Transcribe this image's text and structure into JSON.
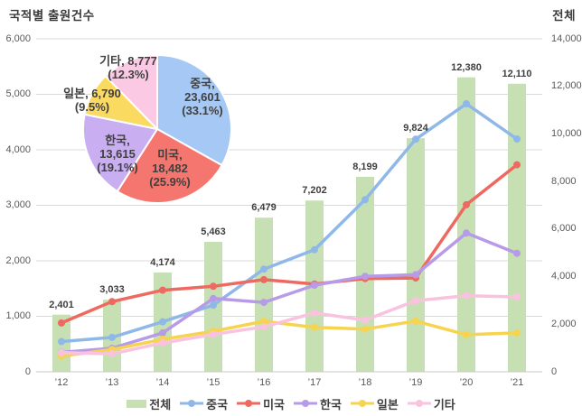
{
  "page": {
    "title": "국적별 출원건수",
    "right_axis_title": "전체"
  },
  "colors": {
    "grid": "#d9d9d9",
    "axis_line": "#c8c8c8",
    "tick_text": "#595959",
    "label_text": "#3f3f3f",
    "pie_border": "#ffffff"
  },
  "legend": {
    "items": [
      {
        "label": "전체",
        "marker": "bar",
        "color": "#c6e0b4"
      },
      {
        "label": "중국",
        "marker": "line",
        "color": "#8fb8e8"
      },
      {
        "label": "미국",
        "marker": "line",
        "color": "#ee6a60"
      },
      {
        "label": "한국",
        "marker": "line",
        "color": "#b89be8"
      },
      {
        "label": "일본",
        "marker": "line",
        "color": "#f7d44f"
      },
      {
        "label": "기타",
        "marker": "line",
        "color": "#f9c2df"
      }
    ]
  },
  "chart_data": [
    {
      "type": "bar",
      "name": "전체",
      "categories": [
        "’12",
        "’13",
        "’14",
        "’15",
        "’16",
        "’17",
        "’18",
        "’19",
        "’20",
        "’21"
      ],
      "values": [
        2401,
        3033,
        4174,
        5463,
        6479,
        7202,
        8199,
        9824,
        12380,
        12110
      ],
      "axis": "right",
      "ylabel": "전체",
      "ylim": [
        0,
        14000
      ],
      "yticks": [
        0,
        2000,
        4000,
        6000,
        8000,
        10000,
        12000,
        14000
      ],
      "color": "#c6e0b4",
      "data_labels": true,
      "grid": false
    },
    {
      "type": "line",
      "categories": [
        "’12",
        "’13",
        "’14",
        "’15",
        "’16",
        "’17",
        "’18",
        "’19",
        "’20",
        "’21"
      ],
      "axis": "left",
      "ylim": [
        0,
        6000
      ],
      "yticks": [
        0,
        1000,
        2000,
        3000,
        4000,
        5000,
        6000
      ],
      "grid": true,
      "legend_position": "bottom",
      "series": [
        {
          "name": "중국",
          "color": "#8fb8e8",
          "values": [
            545,
            620,
            900,
            1200,
            1850,
            2200,
            3100,
            4190,
            4830,
            4195
          ]
        },
        {
          "name": "미국",
          "color": "#ee6a60",
          "values": [
            880,
            1265,
            1470,
            1540,
            1660,
            1580,
            1680,
            1690,
            3010,
            3730
          ]
        },
        {
          "name": "한국",
          "color": "#b89be8",
          "values": [
            350,
            425,
            700,
            1320,
            1250,
            1560,
            1720,
            1750,
            2500,
            2135
          ]
        },
        {
          "name": "일본",
          "color": "#f7d44f",
          "values": [
            281,
            400,
            585,
            730,
            910,
            802,
            769,
            914,
            669,
            700
          ]
        },
        {
          "name": "기타",
          "color": "#f9c2df",
          "values": [
            345,
            323,
            519,
            673,
            809,
            1060,
            930,
            1280,
            1371,
            1350
          ]
        }
      ]
    },
    {
      "type": "pie",
      "slices": [
        {
          "label": "중국",
          "value": 23601,
          "pct": "33.1%",
          "color": "#a5c8f4"
        },
        {
          "label": "미국",
          "value": 18482,
          "pct": "25.9%",
          "color": "#f4766e"
        },
        {
          "label": "한국",
          "value": 13615,
          "pct": "19.1%",
          "color": "#c9aef2"
        },
        {
          "label": "일본",
          "value": 6790,
          "pct": "9.5%",
          "color": "#fbda62"
        },
        {
          "label": "기타",
          "value": 8777,
          "pct": "12.3%",
          "color": "#fcc9e4"
        }
      ]
    }
  ]
}
